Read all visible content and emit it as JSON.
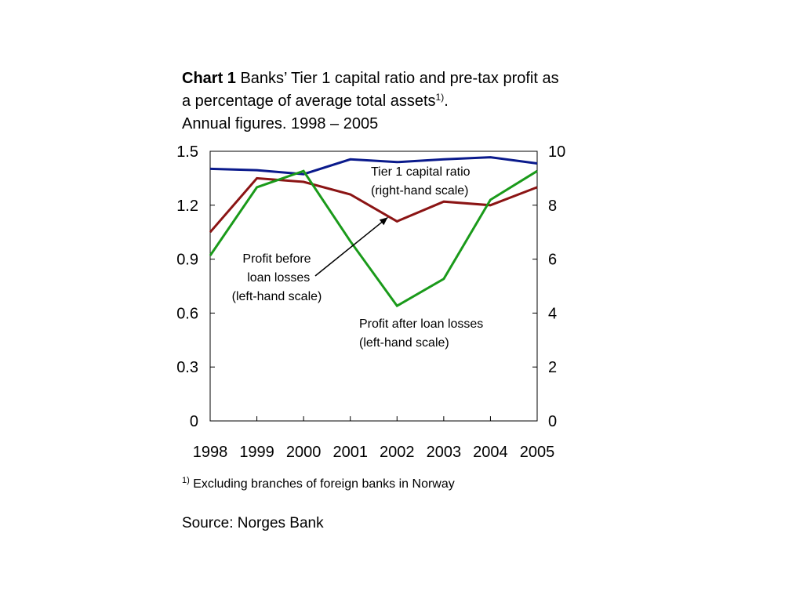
{
  "title": {
    "label": "Chart 1",
    "line1": "Banks’ Tier 1 capital ratio and pre-tax profit as",
    "line2": "a percentage of average total assets",
    "line2_sup": "1)",
    "line2_end": ".",
    "line3": "Annual figures. 1998 – 2005"
  },
  "chart_data": {
    "type": "line",
    "categories": [
      "1998",
      "1999",
      "2000",
      "2001",
      "2002",
      "2003",
      "2004",
      "2005"
    ],
    "left_axis": {
      "ylim": [
        0,
        1.5
      ],
      "ticks": [
        "0",
        "0.3",
        "0.6",
        "0.9",
        "1.2",
        "1.5"
      ]
    },
    "right_axis": {
      "ylim": [
        0,
        10
      ],
      "ticks": [
        "0",
        "2",
        "4",
        "6",
        "8",
        "10"
      ]
    },
    "grid": false,
    "series": [
      {
        "name": "Tier 1 capital ratio",
        "axis": "right",
        "color": "#0a1a8c",
        "values": [
          9.35,
          9.3,
          9.15,
          9.7,
          9.6,
          9.7,
          9.78,
          9.55
        ]
      },
      {
        "name": "Profit before loan losses",
        "axis": "left",
        "color": "#8b1414",
        "values": [
          1.05,
          1.35,
          1.33,
          1.26,
          1.11,
          1.22,
          1.2,
          1.3
        ]
      },
      {
        "name": "Profit after loan losses",
        "axis": "left",
        "color": "#1a9a1a",
        "values": [
          0.92,
          1.3,
          1.39,
          1.0,
          0.64,
          0.79,
          1.23,
          1.39
        ]
      }
    ],
    "annotations": [
      {
        "series": "Tier 1 capital ratio",
        "lines": [
          "Tier 1 capital ratio",
          "(right-hand scale)"
        ]
      },
      {
        "series": "Profit before loan losses",
        "lines": [
          "Profit before",
          " loan losses",
          "(left-hand scale)"
        ],
        "arrow": true
      },
      {
        "series": "Profit after loan losses",
        "lines": [
          "Profit after loan losses",
          "(left-hand scale)"
        ]
      }
    ]
  },
  "footnote": {
    "marker": "1)",
    "text": " Excluding branches of foreign banks in Norway"
  },
  "source": "Source: Norges Bank"
}
